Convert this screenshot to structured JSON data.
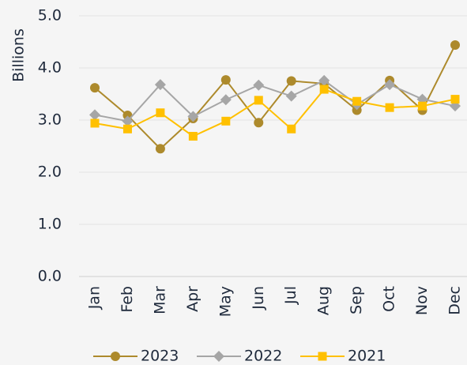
{
  "chart_data": {
    "type": "line",
    "y_label": "Billions",
    "categories": [
      "Jan",
      "Feb",
      "Mar",
      "Apr",
      "May",
      "Jun",
      "Jul",
      "Aug",
      "Sep",
      "Oct",
      "Nov",
      "Dec"
    ],
    "series": [
      {
        "name": "2023",
        "color": "#ad8a2c",
        "marker": "circle",
        "values": [
          3.62,
          3.09,
          2.45,
          3.03,
          3.77,
          2.95,
          3.75,
          3.7,
          3.19,
          3.76,
          3.19,
          4.44
        ]
      },
      {
        "name": "2022",
        "color": "#a6a6a6",
        "marker": "diamond",
        "values": [
          3.1,
          2.98,
          3.68,
          3.07,
          3.39,
          3.67,
          3.46,
          3.76,
          3.3,
          3.68,
          3.4,
          3.27
        ]
      },
      {
        "name": "2021",
        "color": "#ffc000",
        "marker": "square",
        "values": [
          2.94,
          2.83,
          3.14,
          2.69,
          2.98,
          3.38,
          2.83,
          3.59,
          3.36,
          3.24,
          3.27,
          3.4
        ]
      }
    ],
    "ylim": [
      0,
      5
    ],
    "yticks": [
      {
        "value": 0,
        "label": "0.0"
      },
      {
        "value": 1,
        "label": "1.0"
      },
      {
        "value": 2,
        "label": "2.0"
      },
      {
        "value": 3,
        "label": "3.0"
      },
      {
        "value": 4,
        "label": "4.0"
      },
      {
        "value": 5,
        "label": "5.0"
      }
    ],
    "grid": true,
    "legend": "bottom"
  }
}
